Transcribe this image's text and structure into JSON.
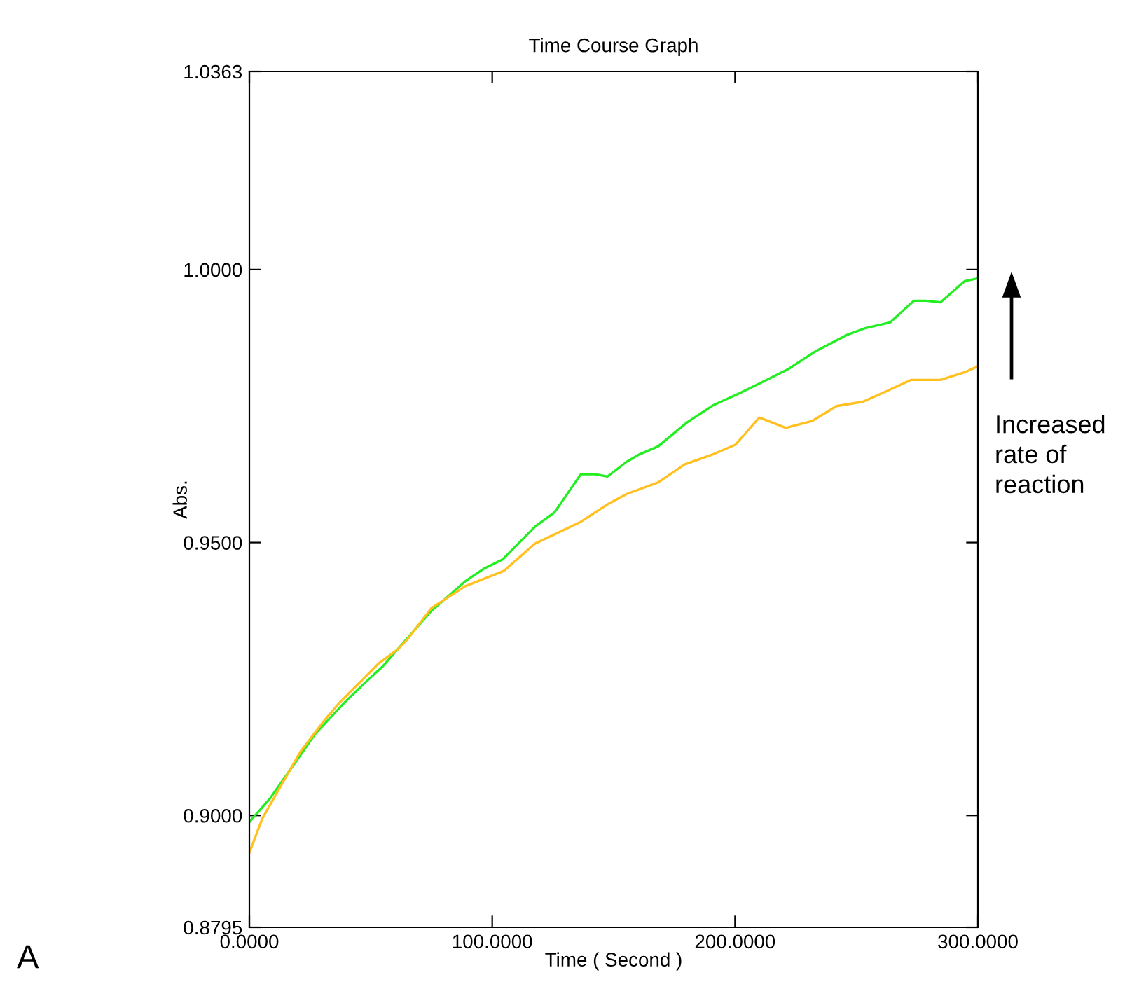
{
  "chart_data": {
    "type": "line",
    "title": "Time Course Graph",
    "xlabel": "Time ( Second )",
    "ylabel": "Abs.",
    "xlim": [
      0,
      300
    ],
    "ylim": [
      0.8795,
      1.0363
    ],
    "xticks": [
      {
        "value": 0,
        "label": "0.0000"
      },
      {
        "value": 100,
        "label": "100.0000"
      },
      {
        "value": 200,
        "label": "200.0000"
      },
      {
        "value": 300,
        "label": "300.0000"
      }
    ],
    "yticks": [
      {
        "value": 0.8795,
        "label": "0.8795"
      },
      {
        "value": 0.9,
        "label": "0.9000"
      },
      {
        "value": 0.95,
        "label": "0.9500"
      },
      {
        "value": 1.0,
        "label": "1.0000"
      },
      {
        "value": 1.0363,
        "label": "1.0363"
      }
    ],
    "grid": false,
    "marker": "none",
    "line_style": "solid",
    "annotations": [
      "Increased rate of reaction",
      "A"
    ],
    "series": [
      {
        "color": "#22ee22",
        "x": [
          0,
          8.3,
          15.3,
          27.2,
          39.2,
          47.1,
          55.1,
          75,
          88.9,
          96.9,
          104.3,
          117.6,
          125.6,
          136.5,
          142.5,
          147.5,
          155.4,
          160.4,
          168.3,
          180.2,
          191.2,
          202.1,
          212.1,
          222,
          233,
          245.9,
          253.8,
          263.8,
          273.7,
          278.7,
          284.6,
          294.6,
          300
        ],
        "values": [
          0.8988,
          0.903,
          0.9074,
          0.915,
          0.9207,
          0.9241,
          0.9274,
          0.9375,
          0.9429,
          0.9453,
          0.9469,
          0.9529,
          0.9555,
          0.9625,
          0.9625,
          0.9621,
          0.9648,
          0.9661,
          0.9676,
          0.972,
          0.9752,
          0.9774,
          0.9796,
          0.9818,
          0.985,
          0.988,
          0.9893,
          0.9903,
          0.9943,
          0.9943,
          0.994,
          0.9979,
          0.9984
        ]
      },
      {
        "color": "#ffc020",
        "x": [
          0,
          5.3,
          13.3,
          21.2,
          31.2,
          37.2,
          47.1,
          53.1,
          61,
          65,
          75,
          88.9,
          104.8,
          117.6,
          136.5,
          147.5,
          155.4,
          168.3,
          179.2,
          191.2,
          200.1,
          210,
          220.9,
          231.9,
          241.8,
          252.7,
          262.7,
          272.6,
          284.6,
          294.6,
          300
        ],
        "values": [
          0.8932,
          0.8994,
          0.9057,
          0.9118,
          0.9176,
          0.9207,
          0.9251,
          0.9278,
          0.9304,
          0.9322,
          0.938,
          0.942,
          0.9448,
          0.9498,
          0.9538,
          0.957,
          0.9589,
          0.961,
          0.9643,
          0.9662,
          0.9679,
          0.9729,
          0.971,
          0.9723,
          0.975,
          0.9758,
          0.9778,
          0.9798,
          0.9798,
          0.9812,
          0.9823
        ]
      }
    ]
  }
}
